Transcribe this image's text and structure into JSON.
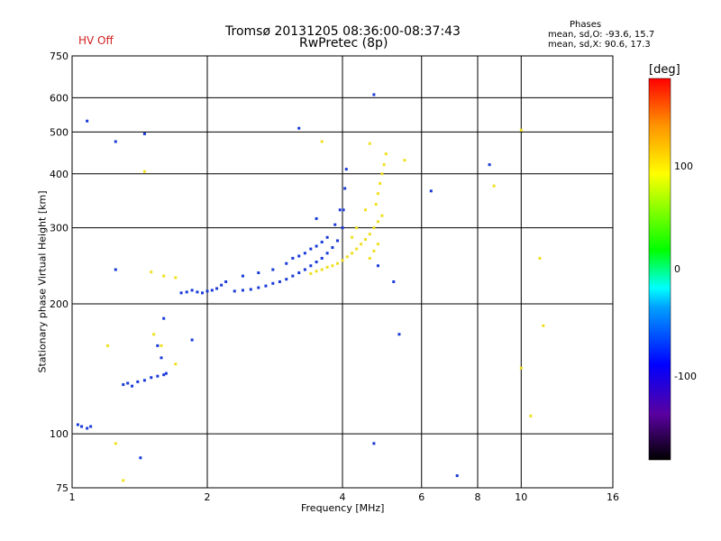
{
  "header": {
    "title_line1": "Tromsø 20131205 08:36:00-08:37:43",
    "title_line2": "RwPretec (8p)",
    "hv_status": "HV Off",
    "phases_title": "Phases",
    "phases_o": "mean, sd,O: -93.6, 15.7",
    "phases_x": "mean, sd,X:  90.6, 17.3"
  },
  "colorbar": {
    "label": "[deg]",
    "ticks": [
      "100",
      "0",
      "-100"
    ],
    "range": [
      -180,
      180
    ],
    "colors": [
      "#000000",
      "#5a00a0",
      "#0000ff",
      "#00a0ff",
      "#00ffff",
      "#00ff00",
      "#ffff00",
      "#ff9000",
      "#ff0000"
    ]
  },
  "chart_data": {
    "type": "scatter",
    "title": "Tromsø 20131205 08:36:00-08:37:43",
    "subtitle": "RwPretec (8p)",
    "xlabel": "Frequency [MHz]",
    "ylabel": "Stationary phase Virtual Height [km]",
    "x_scale": "log",
    "y_scale": "log",
    "xlim": [
      1,
      16
    ],
    "ylim": [
      75,
      750
    ],
    "x_ticks": [
      "1",
      "2",
      "4",
      "6",
      "8",
      "10",
      "16"
    ],
    "y_ticks": [
      "75",
      "100",
      "200",
      "300",
      "400",
      "500",
      "600",
      "750"
    ],
    "grid": true,
    "series": [
      {
        "name": "O",
        "color": "#1a3ad8",
        "points": [
          [
            1.03,
            105
          ],
          [
            1.05,
            104
          ],
          [
            1.08,
            103
          ],
          [
            1.1,
            104
          ],
          [
            1.3,
            130
          ],
          [
            1.33,
            131
          ],
          [
            1.36,
            129
          ],
          [
            1.4,
            132
          ],
          [
            1.45,
            133
          ],
          [
            1.5,
            135
          ],
          [
            1.55,
            136
          ],
          [
            1.6,
            137
          ],
          [
            1.62,
            138
          ],
          [
            1.58,
            150
          ],
          [
            1.55,
            160
          ],
          [
            1.6,
            185
          ],
          [
            1.75,
            212
          ],
          [
            1.8,
            213
          ],
          [
            1.85,
            215
          ],
          [
            1.9,
            213
          ],
          [
            1.95,
            212
          ],
          [
            2.0,
            214
          ],
          [
            2.05,
            215
          ],
          [
            2.1,
            217
          ],
          [
            2.15,
            221
          ],
          [
            2.2,
            225
          ],
          [
            2.3,
            214
          ],
          [
            2.4,
            215
          ],
          [
            2.5,
            216
          ],
          [
            2.6,
            218
          ],
          [
            2.7,
            220
          ],
          [
            2.8,
            223
          ],
          [
            2.9,
            225
          ],
          [
            3.0,
            228
          ],
          [
            3.1,
            232
          ],
          [
            3.2,
            236
          ],
          [
            3.3,
            240
          ],
          [
            3.4,
            245
          ],
          [
            3.5,
            250
          ],
          [
            3.6,
            255
          ],
          [
            3.7,
            262
          ],
          [
            3.8,
            270
          ],
          [
            3.9,
            280
          ],
          [
            4.0,
            300
          ],
          [
            4.02,
            330
          ],
          [
            4.05,
            370
          ],
          [
            4.08,
            410
          ],
          [
            3.1,
            255
          ],
          [
            3.3,
            262
          ],
          [
            3.5,
            272
          ],
          [
            3.7,
            285
          ],
          [
            3.85,
            305
          ],
          [
            3.95,
            330
          ],
          [
            2.4,
            232
          ],
          [
            2.6,
            236
          ],
          [
            2.8,
            240
          ],
          [
            3.0,
            248
          ],
          [
            3.2,
            258
          ],
          [
            3.4,
            268
          ],
          [
            3.6,
            278
          ],
          [
            1.08,
            530
          ],
          [
            1.25,
            475
          ],
          [
            1.45,
            495
          ],
          [
            1.25,
            240
          ],
          [
            1.42,
            88
          ],
          [
            1.85,
            165
          ],
          [
            3.2,
            510
          ],
          [
            3.5,
            315
          ],
          [
            4.7,
            610
          ],
          [
            4.7,
            95
          ],
          [
            4.8,
            245
          ],
          [
            5.2,
            225
          ],
          [
            5.35,
            170
          ],
          [
            6.3,
            365
          ],
          [
            7.2,
            80
          ],
          [
            8.5,
            420
          ]
        ]
      },
      {
        "name": "X",
        "color": "#f0e020",
        "points": [
          [
            3.4,
            235
          ],
          [
            3.5,
            238
          ],
          [
            3.6,
            240
          ],
          [
            3.7,
            243
          ],
          [
            3.8,
            245
          ],
          [
            3.9,
            248
          ],
          [
            4.0,
            252
          ],
          [
            4.1,
            257
          ],
          [
            4.2,
            262
          ],
          [
            4.3,
            268
          ],
          [
            4.4,
            275
          ],
          [
            4.5,
            282
          ],
          [
            4.6,
            290
          ],
          [
            4.7,
            300
          ],
          [
            4.8,
            310
          ],
          [
            4.9,
            320
          ],
          [
            4.75,
            340
          ],
          [
            4.8,
            360
          ],
          [
            4.85,
            380
          ],
          [
            4.9,
            400
          ],
          [
            4.95,
            420
          ],
          [
            5.0,
            445
          ],
          [
            4.6,
            470
          ],
          [
            4.5,
            330
          ],
          [
            4.3,
            300
          ],
          [
            4.2,
            285
          ],
          [
            4.6,
            255
          ],
          [
            4.7,
            265
          ],
          [
            4.8,
            275
          ],
          [
            1.5,
            237
          ],
          [
            1.6,
            232
          ],
          [
            1.7,
            230
          ],
          [
            1.52,
            170
          ],
          [
            1.58,
            160
          ],
          [
            1.7,
            145
          ],
          [
            1.2,
            160
          ],
          [
            1.25,
            95
          ],
          [
            1.3,
            78
          ],
          [
            1.45,
            405
          ],
          [
            3.6,
            475
          ],
          [
            5.5,
            430
          ],
          [
            8.7,
            375
          ],
          [
            10.0,
            505
          ],
          [
            11,
            255
          ],
          [
            11.2,
            178
          ],
          [
            10,
            142
          ],
          [
            10.5,
            110
          ]
        ]
      }
    ]
  }
}
